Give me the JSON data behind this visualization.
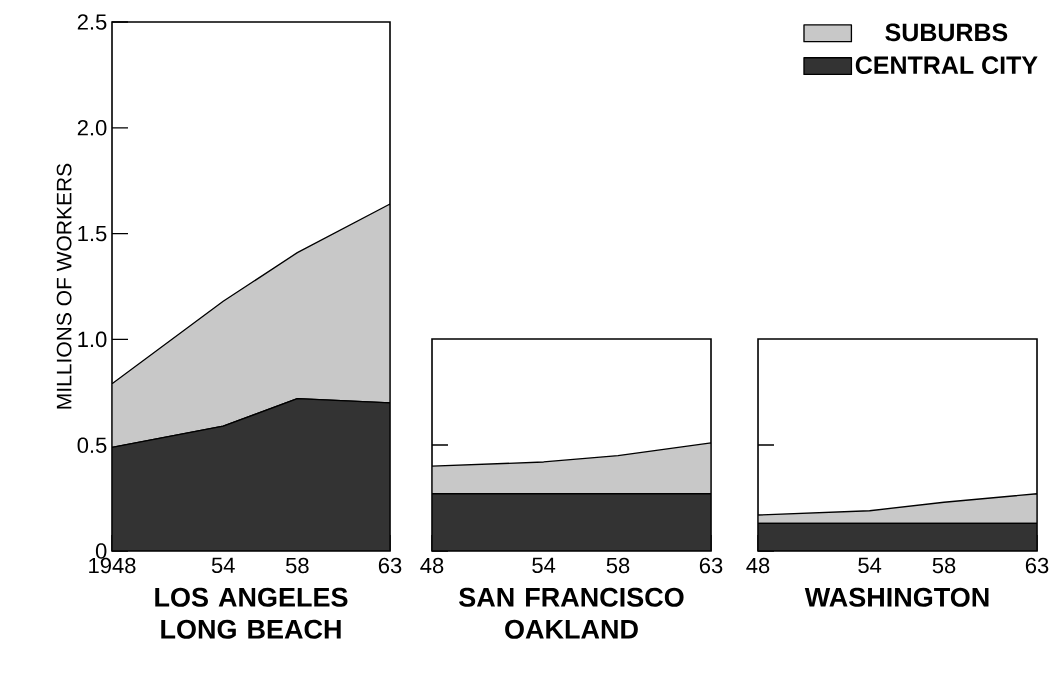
{
  "chart_data": [
    {
      "type": "area",
      "title": "LOS ANGELES LONG BEACH",
      "ylabel": "MILLIONS OF WORKERS",
      "stacked": true,
      "legend": "top right",
      "x": [
        1948,
        1954,
        1958,
        1963
      ],
      "xlim": [
        1948,
        1963
      ],
      "ylim": [
        0,
        2.5
      ],
      "xticks": [
        {
          "value": 1948,
          "label": "1948"
        },
        {
          "value": 1954,
          "label": "54"
        },
        {
          "value": 1958,
          "label": "58"
        },
        {
          "value": 1963,
          "label": "63"
        }
      ],
      "yticks": [
        0,
        0.5,
        {
          "value": 1.0,
          "label": "1.0"
        },
        1.5,
        {
          "value": 2.0,
          "label": "2.0"
        },
        2.5
      ],
      "series": [
        {
          "name": "CENTRAL CITY",
          "color": "#333333",
          "values": [
            0.49,
            0.59,
            0.72,
            0.7
          ]
        },
        {
          "name": "SUBURBS",
          "color": "#c8c8c8",
          "values": [
            0.3,
            0.59,
            0.69,
            0.94
          ]
        }
      ]
    },
    {
      "type": "area",
      "title": "SAN FRANCISCO OAKLAND",
      "stacked": true,
      "tick_labels": "x",
      "x": [
        1948,
        1954,
        1958,
        1963
      ],
      "xlim": [
        1948,
        1963
      ],
      "ylim": [
        0,
        1.0
      ],
      "xticks": [
        {
          "value": 1948,
          "label": "48"
        },
        {
          "value": 1954,
          "label": "54"
        },
        {
          "value": 1958,
          "label": "58"
        },
        {
          "value": 1963,
          "label": "63"
        }
      ],
      "yticks": [
        0,
        0.5
      ],
      "series": [
        {
          "color": "#333333",
          "values": [
            0.27,
            0.27,
            0.27,
            0.27
          ]
        },
        {
          "color": "#c8c8c8",
          "values": [
            0.13,
            0.15,
            0.18,
            0.24
          ]
        }
      ]
    },
    {
      "type": "area",
      "title": "WASHINGTON",
      "stacked": true,
      "tick_labels": "x",
      "x": [
        1948,
        1954,
        1958,
        1963
      ],
      "xlim": [
        1948,
        1963
      ],
      "ylim": [
        0,
        1.0
      ],
      "xticks": [
        {
          "value": 1948,
          "label": "48"
        },
        {
          "value": 1954,
          "label": "54"
        },
        {
          "value": 1958,
          "label": "58"
        },
        {
          "value": 1963,
          "label": "63"
        }
      ],
      "yticks": [
        0,
        0.5
      ],
      "series": [
        {
          "color": "#333333",
          "values": [
            0.13,
            0.13,
            0.13,
            0.13
          ]
        },
        {
          "color": "#c8c8c8",
          "values": [
            0.04,
            0.06,
            0.1,
            0.14
          ]
        }
      ]
    }
  ]
}
